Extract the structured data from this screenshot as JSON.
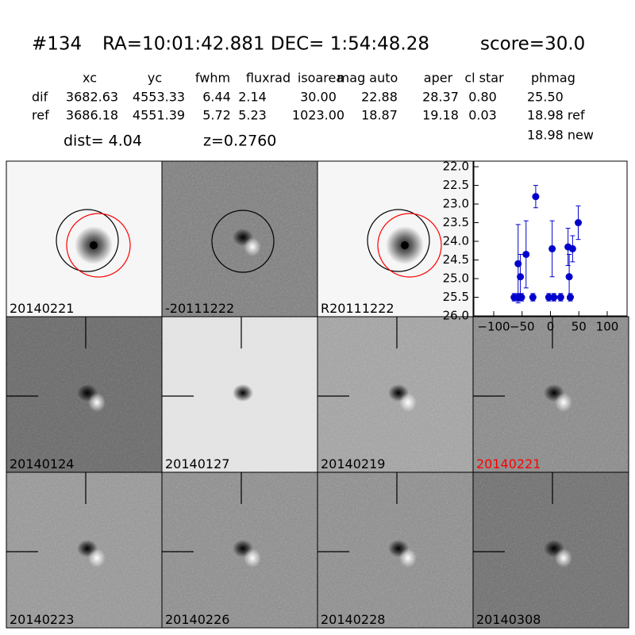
{
  "header": {
    "id": "#134",
    "coords": "RA=10:01:42.881 DEC= 1:54:48.28",
    "score": "score=30.0"
  },
  "table": {
    "columns": [
      "xc",
      "yc",
      "fwhm",
      "fluxrad",
      "isoarea",
      "mag auto",
      "aper",
      "cl star",
      "phmag"
    ],
    "rows": [
      [
        "dif",
        "3682.63",
        "4553.33",
        "6.44",
        "2.14",
        "30.00",
        "22.88",
        "28.37",
        "0.80",
        "25.50"
      ],
      [
        "ref",
        "3686.18",
        "4551.39",
        "5.72",
        "5.23",
        "1023.00",
        "18.87",
        "19.18",
        "0.03",
        "18.98 ref"
      ]
    ],
    "extra": "18.98 new"
  },
  "dist": "dist=  4.04",
  "redshift": "z=0.2760",
  "panels": [
    {
      "label": "20140221"
    },
    {
      "label": "-20111222"
    },
    {
      "label": "R20111222"
    },
    {
      "label": "20140124"
    },
    {
      "label": "20140127"
    },
    {
      "label": "20140219"
    },
    {
      "label": "20140221",
      "color": "#ff0000"
    },
    {
      "label": "20140223"
    },
    {
      "label": "20140226"
    },
    {
      "label": "20140228"
    },
    {
      "label": "20140308"
    }
  ],
  "chart_data": {
    "type": "scatter",
    "color": "#0000cc",
    "x": [
      -64,
      -57,
      -51,
      -57,
      -53,
      -43,
      -31,
      -26,
      -3,
      3,
      6,
      18,
      31,
      33,
      35,
      39,
      49
    ],
    "values": [
      25.5,
      25.5,
      25.5,
      24.6,
      24.95,
      24.35,
      25.5,
      22.8,
      25.5,
      24.2,
      25.5,
      25.5,
      24.15,
      24.95,
      25.5,
      24.2,
      23.5
    ],
    "errors": [
      0.1,
      0.1,
      0.1,
      1.05,
      0.6,
      0.9,
      0.1,
      0.3,
      0.1,
      0.75,
      0.1,
      0.1,
      0.5,
      0.6,
      0.1,
      0.35,
      0.45
    ],
    "xlim": [
      -135,
      135
    ],
    "ylim": [
      26,
      21.85
    ],
    "xticks": [
      {
        "value": -100,
        "label": "−100"
      },
      {
        "value": -50,
        "label": "−50"
      },
      0,
      50,
      100
    ],
    "yticks": [
      {
        "value": 22,
        "label": "22.0"
      },
      22.5,
      {
        "value": 23,
        "label": "23.0"
      },
      23.5,
      {
        "value": 24,
        "label": "24.0"
      },
      24.5,
      {
        "value": 25,
        "label": "25.0"
      },
      25.5,
      {
        "value": 26,
        "label": "26.0"
      }
    ]
  }
}
